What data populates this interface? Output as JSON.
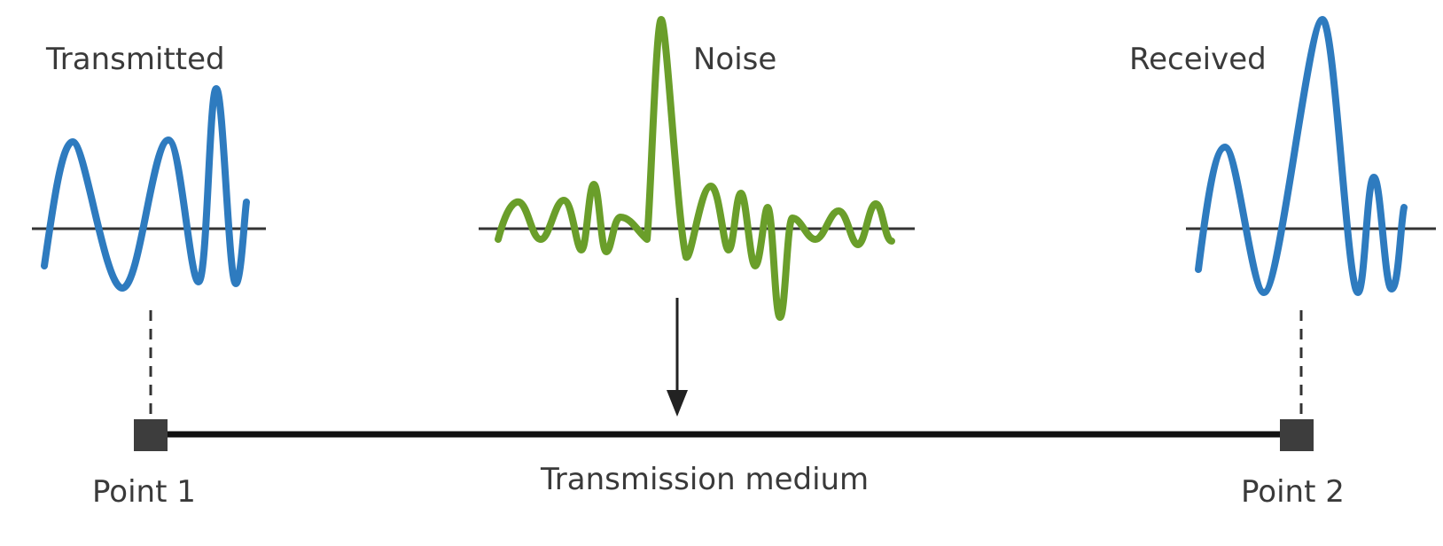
{
  "labels": {
    "transmitted": "Transmitted",
    "noise": "Noise",
    "received": "Received",
    "point1": "Point 1",
    "point2": "Point 2",
    "medium": "Transmission medium"
  },
  "colors": {
    "signal": "#2e7bbf",
    "noise": "#6a9e2a",
    "medium_line": "#111111",
    "endpoint": "#3d3d3d",
    "baseline": "#333333",
    "text": "#3a3a3a"
  }
}
